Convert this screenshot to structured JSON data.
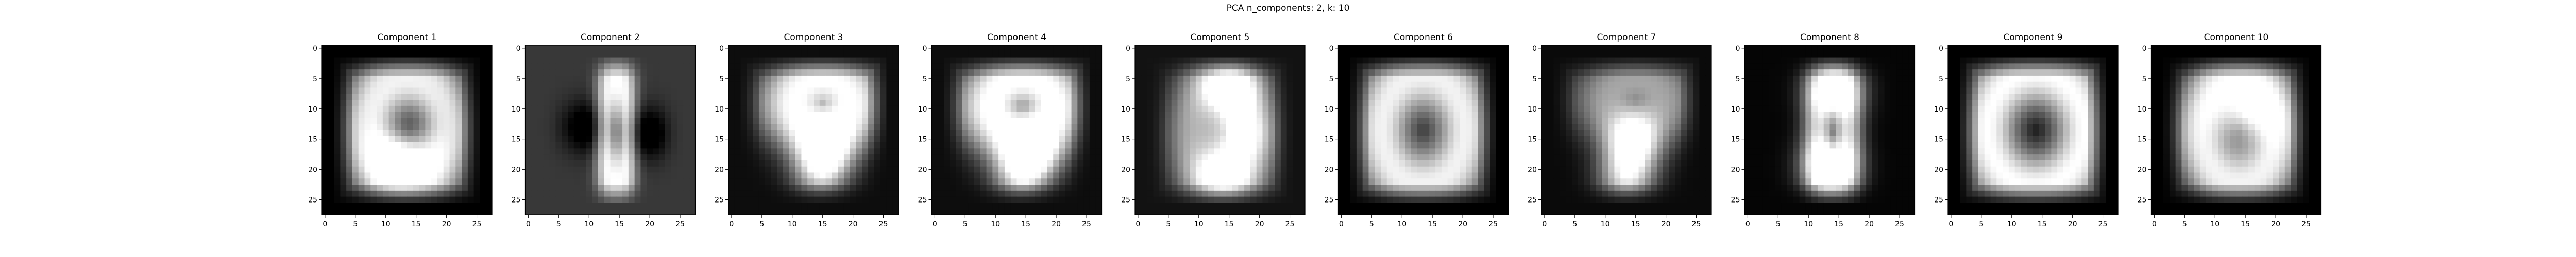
{
  "figure": {
    "suptitle": "PCA n_components: 2, k: 10"
  },
  "chart_data": [
    {
      "type": "heatmap",
      "title": "Component 1",
      "colormap": "gray",
      "image_shape": [
        28,
        28
      ],
      "xticks": [
        0,
        5,
        10,
        15,
        20,
        25
      ],
      "yticks": [
        0,
        5,
        10,
        15,
        20,
        25
      ],
      "x_range": [
        -0.5,
        27.5
      ],
      "y_range": [
        27.5,
        -0.5
      ],
      "shape_description": "digit 0 / 6 blend",
      "stroke": {
        "cx": 13.5,
        "cy": 13.5,
        "rx": 6.5,
        "ry": 9.0,
        "width": 2.6,
        "peak": 0.95,
        "blur": 1.6
      },
      "hole": 0.35,
      "background": 0.0,
      "blob_bright": [
        [
          12.5,
          18.5,
          0.6
        ]
      ],
      "blob_dark": [
        [
          14.5,
          12.5,
          0.25
        ]
      ]
    },
    {
      "type": "heatmap",
      "title": "Component 2",
      "colormap": "gray",
      "image_shape": [
        28,
        28
      ],
      "xticks": [
        0,
        5,
        10,
        15,
        20,
        25
      ],
      "yticks": [
        0,
        5,
        10,
        15,
        20,
        25
      ],
      "x_range": [
        -0.5,
        27.5
      ],
      "y_range": [
        27.5,
        -0.5
      ],
      "shape_description": "digit 1 with dark surround",
      "stroke": {
        "cx": 14.5,
        "cy": 14.0,
        "rx": 1.6,
        "ry": 9.0,
        "width": 2.2,
        "peak": 0.8,
        "blur": 2.2
      },
      "hole": 0.0,
      "background": 0.22,
      "blob_bright": [],
      "blob_dark": [
        [
          10.0,
          13.0,
          0.35
        ],
        [
          19.0,
          14.0,
          0.35
        ]
      ]
    },
    {
      "type": "heatmap",
      "title": "Component 3",
      "colormap": "gray",
      "image_shape": [
        28,
        28
      ],
      "xticks": [
        0,
        5,
        10,
        15,
        20,
        25
      ],
      "yticks": [
        0,
        5,
        10,
        15,
        20,
        25
      ],
      "x_range": [
        -0.5,
        27.5
      ],
      "y_range": [
        27.5,
        -0.5
      ],
      "shape_description": "digit 9",
      "stroke": {
        "cx": 15.0,
        "cy": 9.0,
        "rx": 5.0,
        "ry": 4.2,
        "width": 2.4,
        "peak": 0.95,
        "blur": 1.5
      },
      "hole": 0.2,
      "background": 0.05,
      "blob_bright": [
        [
          15.5,
          17.0,
          0.7
        ],
        [
          14.5,
          21.0,
          0.55
        ]
      ],
      "blob_dark": []
    },
    {
      "type": "heatmap",
      "title": "Component 4",
      "colormap": "gray",
      "image_shape": [
        28,
        28
      ],
      "xticks": [
        0,
        5,
        10,
        15,
        20,
        25
      ],
      "yticks": [
        0,
        5,
        10,
        15,
        20,
        25
      ],
      "x_range": [
        -0.5,
        27.5
      ],
      "y_range": [
        27.5,
        -0.5
      ],
      "shape_description": "digit 9",
      "stroke": {
        "cx": 14.5,
        "cy": 9.5,
        "rx": 5.2,
        "ry": 4.5,
        "width": 2.6,
        "peak": 1.0,
        "blur": 1.4
      },
      "hole": 0.05,
      "background": 0.05,
      "blob_bright": [
        [
          16.0,
          17.5,
          0.75
        ],
        [
          14.0,
          21.5,
          0.6
        ]
      ],
      "blob_dark": []
    },
    {
      "type": "heatmap",
      "title": "Component 5",
      "colormap": "gray",
      "image_shape": [
        28,
        28
      ],
      "xticks": [
        0,
        5,
        10,
        15,
        20,
        25
      ],
      "yticks": [
        0,
        5,
        10,
        15,
        20,
        25
      ],
      "x_range": [
        -0.5,
        27.5
      ],
      "y_range": [
        27.5,
        -0.5
      ],
      "shape_description": "digit 3",
      "stroke": {
        "cx": 14.0,
        "cy": 14.0,
        "rx": 5.5,
        "ry": 9.0,
        "width": 2.0,
        "peak": 0.55,
        "blur": 2.0
      },
      "hole": 0.0,
      "background": 0.07,
      "blob_bright": [
        [
          15.0,
          6.5,
          0.8
        ],
        [
          16.0,
          14.0,
          0.7
        ],
        [
          14.0,
          21.0,
          0.75
        ]
      ],
      "blob_dark": []
    },
    {
      "type": "heatmap",
      "title": "Component 6",
      "colormap": "gray",
      "image_shape": [
        28,
        28
      ],
      "xticks": [
        0,
        5,
        10,
        15,
        20,
        25
      ],
      "yticks": [
        0,
        5,
        10,
        15,
        20,
        25
      ],
      "x_range": [
        -0.5,
        27.5
      ],
      "y_range": [
        27.5,
        -0.5
      ],
      "shape_description": "digit 0",
      "stroke": {
        "cx": 13.5,
        "cy": 13.5,
        "rx": 7.0,
        "ry": 9.2,
        "width": 2.6,
        "peak": 0.95,
        "blur": 1.6
      },
      "hole": 0.1,
      "background": 0.0,
      "blob_bright": [],
      "blob_dark": []
    },
    {
      "type": "heatmap",
      "title": "Component 7",
      "colormap": "gray",
      "image_shape": [
        28,
        28
      ],
      "xticks": [
        0,
        5,
        10,
        15,
        20,
        25
      ],
      "yticks": [
        0,
        5,
        10,
        15,
        20,
        25
      ],
      "x_range": [
        -0.5,
        27.5
      ],
      "y_range": [
        27.5,
        -0.5
      ],
      "shape_description": "digit 7 / 9 blend",
      "stroke": {
        "cx": 15.0,
        "cy": 8.5,
        "rx": 4.5,
        "ry": 3.5,
        "width": 2.2,
        "peak": 0.6,
        "blur": 1.8
      },
      "hole": 0.1,
      "background": 0.04,
      "blob_bright": [
        [
          14.5,
          16.0,
          0.8
        ],
        [
          13.5,
          21.5,
          0.75
        ]
      ],
      "blob_dark": []
    },
    {
      "type": "heatmap",
      "title": "Component 8",
      "colormap": "gray",
      "image_shape": [
        28,
        28
      ],
      "xticks": [
        0,
        5,
        10,
        15,
        20,
        25
      ],
      "yticks": [
        0,
        5,
        10,
        15,
        20,
        25
      ],
      "x_range": [
        -0.5,
        27.5
      ],
      "y_range": [
        27.5,
        -0.5
      ],
      "shape_description": "digit 8 / 1 blend",
      "stroke": {
        "cx": 14.0,
        "cy": 14.0,
        "rx": 2.5,
        "ry": 9.0,
        "width": 2.5,
        "peak": 0.7,
        "blur": 1.6
      },
      "hole": 0.0,
      "background": 0.02,
      "blob_bright": [
        [
          14.5,
          7.0,
          0.7
        ],
        [
          13.5,
          19.5,
          0.8
        ]
      ],
      "blob_dark": []
    },
    {
      "type": "heatmap",
      "title": "Component 9",
      "colormap": "gray",
      "image_shape": [
        28,
        28
      ],
      "xticks": [
        0,
        5,
        10,
        15,
        20,
        25
      ],
      "yticks": [
        0,
        5,
        10,
        15,
        20,
        25
      ],
      "x_range": [
        -0.5,
        27.5
      ],
      "y_range": [
        27.5,
        -0.5
      ],
      "shape_description": "digit 0 (wide)",
      "stroke": {
        "cx": 14.0,
        "cy": 13.5,
        "rx": 8.0,
        "ry": 9.5,
        "width": 2.8,
        "peak": 1.0,
        "blur": 1.4
      },
      "hole": 0.0,
      "background": 0.0,
      "blob_bright": [],
      "blob_dark": []
    },
    {
      "type": "heatmap",
      "title": "Component 10",
      "colormap": "gray",
      "image_shape": [
        28,
        28
      ],
      "xticks": [
        0,
        5,
        10,
        15,
        20,
        25
      ],
      "yticks": [
        0,
        5,
        10,
        15,
        20,
        25
      ],
      "x_range": [
        -0.5,
        27.5
      ],
      "y_range": [
        27.5,
        -0.5
      ],
      "shape_description": "digit 0 (slanted)",
      "stroke": {
        "cx": 14.0,
        "cy": 13.5,
        "rx": 6.5,
        "ry": 9.0,
        "width": 2.4,
        "peak": 0.95,
        "blur": 1.5
      },
      "hole": 0.2,
      "background": 0.0,
      "blob_bright": [
        [
          15.0,
          11.0,
          0.5
        ]
      ],
      "blob_dark": []
    }
  ]
}
